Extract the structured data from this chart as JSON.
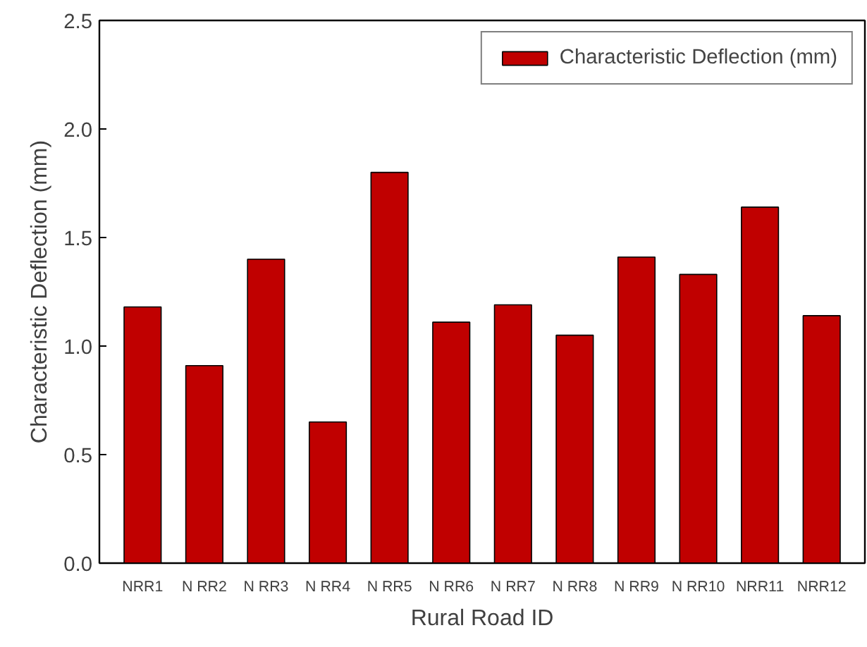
{
  "chart_data": {
    "type": "bar",
    "xlabel": "Rural Road ID",
    "ylabel": "Characteristic Deflection (mm)",
    "categories": [
      "NRR1",
      "N RR2",
      "N RR3",
      "N RR4",
      "N RR5",
      "N RR6",
      "N RR7",
      "N RR8",
      "N RR9",
      "N RR10",
      "NRR11",
      "NRR12"
    ],
    "series": [
      {
        "name": "Characteristic Deflection (mm)",
        "color": "#c00000",
        "values": [
          1.18,
          0.91,
          1.4,
          0.65,
          1.8,
          1.11,
          1.19,
          1.05,
          1.41,
          1.33,
          1.64,
          1.14
        ]
      }
    ],
    "ylim": [
      0,
      2.5
    ],
    "yticks": [
      {
        "value": 0,
        "label": "0.0"
      },
      0.5,
      {
        "value": 1,
        "label": "1.0"
      },
      1.5,
      {
        "value": 2,
        "label": "2.0"
      },
      2.5
    ],
    "grid": false,
    "legend": "top right"
  }
}
